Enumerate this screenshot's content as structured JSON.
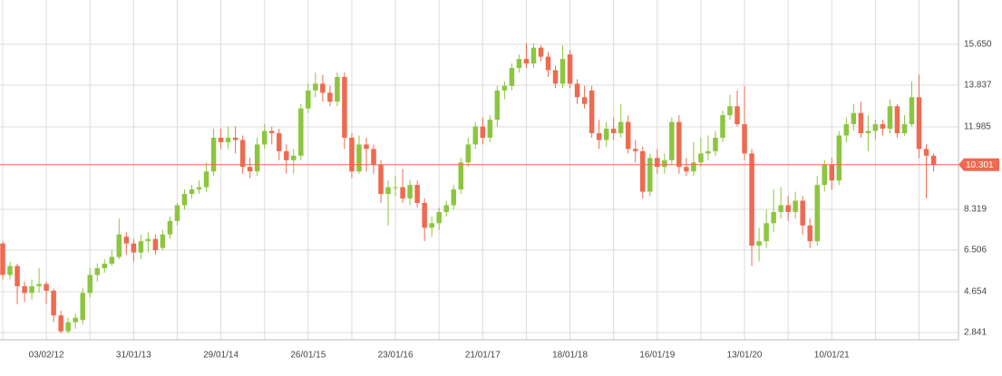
{
  "chart_data": {
    "type": "candlestick",
    "categories": [
      null,
      null,
      null,
      null,
      null,
      null,
      "03/02/12",
      null,
      null,
      null,
      null,
      null,
      null,
      null,
      null,
      null,
      null,
      null,
      "31/01/13",
      null,
      null,
      null,
      null,
      null,
      null,
      null,
      null,
      null,
      null,
      null,
      "29/01/14",
      null,
      null,
      null,
      null,
      null,
      null,
      null,
      null,
      null,
      null,
      null,
      "26/01/15",
      null,
      null,
      null,
      null,
      null,
      null,
      null,
      null,
      null,
      null,
      null,
      "23/01/16",
      null,
      null,
      null,
      null,
      null,
      null,
      null,
      null,
      null,
      null,
      null,
      "21/01/17",
      null,
      null,
      null,
      null,
      null,
      null,
      null,
      null,
      null,
      null,
      null,
      "18/01/18",
      null,
      null,
      null,
      null,
      null,
      null,
      null,
      null,
      null,
      null,
      null,
      "16/01/19",
      null,
      null,
      null,
      null,
      null,
      null,
      null,
      null,
      null,
      null,
      null,
      "13/01/20",
      null,
      null,
      null,
      null,
      null,
      null,
      null,
      null,
      null,
      null,
      null,
      "10/01/21",
      null,
      null,
      null,
      null,
      null,
      null,
      null,
      null,
      null,
      null,
      null,
      null,
      null,
      null
    ],
    "open": [
      6.8,
      5.4,
      5.8,
      4.9,
      4.6,
      4.9,
      5.0,
      4.7,
      3.6,
      2.9,
      3.3,
      3.4,
      4.6,
      5.4,
      5.7,
      5.9,
      6.2,
      7.1,
      6.8,
      6.4,
      6.9,
      7.0,
      6.6,
      7.2,
      7.8,
      8.5,
      9.0,
      9.2,
      9.3,
      10.0,
      11.5,
      11.3,
      11.5,
      11.4,
      10.2,
      10.0,
      11.2,
      11.8,
      11.7,
      10.9,
      10.5,
      10.7,
      12.8,
      13.6,
      13.9,
      13.5,
      13.1,
      14.2,
      11.5,
      10.0,
      11.2,
      11.0,
      10.3,
      9.0,
      9.3,
      9.3,
      8.8,
      9.4,
      8.6,
      7.5,
      7.7,
      8.2,
      8.5,
      9.2,
      10.4,
      11.2,
      12.0,
      11.5,
      12.3,
      13.6,
      13.8,
      14.6,
      15.0,
      14.8,
      15.5,
      15.1,
      14.5,
      13.9,
      15.2,
      13.9,
      13.3,
      13.6,
      11.7,
      11.4,
      11.9,
      11.7,
      12.2,
      11.0,
      10.9,
      9.1,
      10.6,
      10.2,
      10.5,
      12.2,
      10.2,
      10.0,
      10.4,
      10.8,
      10.9,
      11.5,
      12.5,
      12.9,
      12.1,
      10.8,
      6.7,
      6.9,
      7.7,
      8.2,
      8.5,
      8.2,
      8.7,
      7.6,
      6.9,
      9.4,
      10.3,
      9.6,
      11.6,
      12.1,
      12.6,
      11.7,
      11.8,
      12.1,
      11.9,
      12.9,
      11.7,
      12.1,
      13.3,
      11.0,
      10.7
    ],
    "high": [
      6.9,
      6.0,
      5.9,
      5.1,
      5.2,
      5.7,
      5.1,
      4.8,
      3.8,
      3.5,
      3.7,
      4.8,
      5.7,
      5.9,
      6.1,
      6.5,
      7.9,
      7.3,
      7.0,
      7.2,
      7.3,
      7.2,
      7.4,
      8.0,
      8.6,
      9.2,
      9.4,
      9.6,
      10.4,
      11.9,
      11.9,
      12.0,
      12.0,
      11.6,
      10.6,
      11.5,
      12.1,
      12.0,
      11.9,
      11.2,
      11.0,
      13.0,
      13.9,
      14.4,
      14.3,
      13.8,
      14.4,
      14.4,
      11.7,
      11.6,
      11.5,
      11.2,
      10.5,
      9.6,
      9.8,
      10.1,
      9.6,
      9.6,
      8.8,
      8.0,
      8.4,
      8.7,
      9.4,
      10.6,
      11.5,
      12.2,
      12.4,
      12.5,
      13.8,
      14.0,
      14.8,
      15.2,
      15.7,
      15.7,
      15.6,
      15.3,
      14.7,
      15.6,
      15.4,
      14.1,
      13.8,
      13.8,
      12.3,
      12.2,
      12.4,
      13.0,
      12.5,
      11.4,
      11.1,
      10.8,
      11.0,
      10.8,
      12.4,
      12.5,
      10.6,
      11.3,
      11.5,
      11.6,
      11.8,
      12.7,
      13.4,
      13.6,
      13.8,
      11.0,
      7.5,
      8.3,
      9.2,
      9.3,
      8.9,
      9.1,
      8.9,
      7.9,
      9.8,
      10.5,
      10.6,
      11.8,
      12.4,
      13.0,
      13.1,
      12.5,
      12.3,
      12.3,
      13.2,
      13.0,
      12.5,
      14.0,
      14.3,
      11.2,
      10.8
    ],
    "low": [
      5.2,
      5.2,
      4.1,
      4.2,
      4.3,
      4.6,
      4.1,
      3.3,
      2.8,
      2.8,
      3.0,
      3.2,
      4.4,
      5.1,
      5.5,
      5.8,
      6.1,
      6.3,
      6.0,
      6.1,
      6.4,
      6.3,
      6.5,
      7.0,
      7.6,
      8.3,
      8.8,
      9.0,
      9.1,
      9.8,
      11.0,
      11.0,
      10.8,
      9.9,
      9.7,
      9.8,
      11.0,
      11.2,
      10.5,
      9.9,
      9.9,
      10.5,
      12.6,
      13.3,
      13.1,
      12.9,
      12.9,
      11.0,
      9.7,
      9.9,
      10.0,
      9.9,
      8.6,
      7.6,
      8.9,
      8.6,
      8.5,
      8.4,
      6.9,
      7.1,
      7.4,
      8.0,
      8.3,
      9.0,
      10.2,
      11.0,
      11.2,
      11.3,
      12.0,
      13.2,
      13.6,
      14.4,
      14.6,
      14.6,
      14.9,
      14.2,
      13.7,
      13.7,
      13.7,
      13.0,
      12.8,
      11.5,
      11.0,
      11.1,
      11.4,
      11.5,
      10.8,
      10.4,
      8.8,
      8.9,
      9.9,
      9.9,
      10.3,
      9.9,
      9.8,
      9.8,
      10.2,
      10.5,
      10.7,
      11.3,
      12.3,
      12.0,
      10.5,
      5.8,
      6.0,
      6.6,
      7.3,
      7.9,
      7.8,
      7.9,
      7.2,
      6.6,
      6.7,
      9.1,
      9.2,
      9.4,
      11.3,
      11.8,
      11.5,
      10.9,
      11.4,
      11.6,
      11.7,
      11.5,
      11.6,
      12.0,
      10.6,
      8.8,
      10.0
    ],
    "close": [
      5.4,
      5.8,
      4.9,
      4.6,
      4.9,
      5.0,
      4.7,
      3.6,
      2.9,
      3.3,
      3.5,
      4.6,
      5.4,
      5.7,
      5.9,
      6.2,
      7.2,
      6.8,
      6.4,
      6.9,
      7.0,
      6.5,
      7.2,
      7.8,
      8.5,
      9.0,
      9.2,
      9.3,
      10.0,
      11.5,
      11.3,
      11.5,
      11.4,
      10.2,
      10.0,
      11.2,
      11.8,
      11.7,
      10.9,
      10.5,
      10.7,
      12.8,
      13.6,
      13.9,
      13.5,
      13.1,
      14.2,
      11.5,
      10.0,
      11.2,
      11.0,
      10.3,
      9.0,
      9.3,
      9.3,
      8.8,
      9.4,
      8.6,
      7.5,
      7.7,
      8.2,
      8.5,
      9.2,
      10.4,
      11.2,
      12.0,
      11.5,
      12.3,
      13.6,
      13.8,
      14.6,
      15.0,
      14.8,
      15.5,
      15.1,
      14.5,
      13.9,
      15.0,
      13.9,
      13.3,
      13.0,
      11.7,
      11.4,
      11.9,
      11.7,
      12.2,
      11.0,
      10.9,
      9.1,
      10.6,
      10.2,
      10.5,
      12.2,
      10.2,
      10.0,
      10.4,
      10.8,
      10.9,
      11.5,
      12.5,
      12.9,
      12.1,
      10.8,
      6.7,
      6.9,
      7.7,
      8.2,
      8.5,
      8.2,
      8.7,
      7.6,
      6.9,
      9.4,
      10.3,
      9.6,
      11.6,
      12.1,
      12.6,
      11.7,
      11.8,
      12.1,
      11.9,
      12.9,
      11.7,
      12.1,
      13.3,
      11.0,
      10.7,
      10.3
    ],
    "up_color": "#8cc63f",
    "down_color": "#ee6a50",
    "ylim": [
      2.52,
      17.62
    ],
    "yticks": [
      {
        "value": 15.65,
        "label": "15.650"
      },
      13.837,
      11.985,
      8.319,
      6.506,
      4.654,
      2.841
    ],
    "last_price": 10.301,
    "last_price_color": "#ee6a50",
    "grid": true
  }
}
